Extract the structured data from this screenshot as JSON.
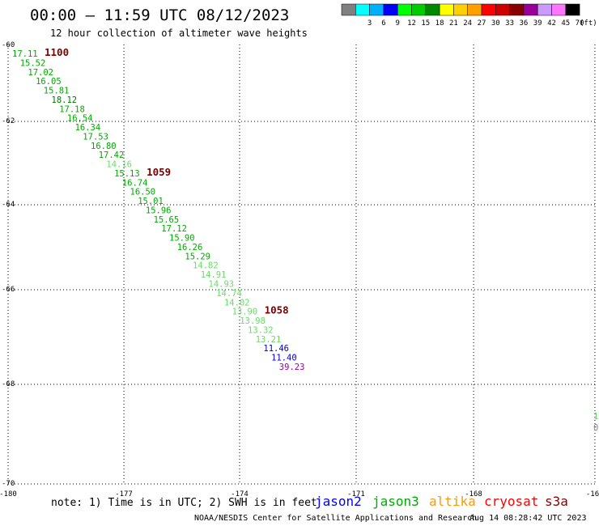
{
  "header": {
    "title": "00:00 – 11:59 UTC 08/12/2023",
    "subtitle": "12 hour collection of altimeter wave heights"
  },
  "legend": {
    "unit": "(ft)",
    "bins": [
      {
        "label": "",
        "color": "#808080"
      },
      {
        "label": "3",
        "color": "#00ffff"
      },
      {
        "label": "6",
        "color": "#00b0ff"
      },
      {
        "label": "9",
        "color": "#0000ff"
      },
      {
        "label": "12",
        "color": "#00ff00"
      },
      {
        "label": "15",
        "color": "#00cc00"
      },
      {
        "label": "18",
        "color": "#008800"
      },
      {
        "label": "21",
        "color": "#ffff00"
      },
      {
        "label": "24",
        "color": "#ffd000"
      },
      {
        "label": "27",
        "color": "#ffa000"
      },
      {
        "label": "30",
        "color": "#ff0000"
      },
      {
        "label": "33",
        "color": "#cc0000"
      },
      {
        "label": "36",
        "color": "#880000"
      },
      {
        "label": "39",
        "color": "#990099"
      },
      {
        "label": "42",
        "color": "#cc99ff"
      },
      {
        "label": "45",
        "color": "#ff77ff"
      },
      {
        "label": "70",
        "color": "#000000"
      }
    ]
  },
  "axes": {
    "lat_labels": [
      "-60",
      "-62",
      "-64",
      "-66",
      "-68",
      "-70"
    ],
    "lon_labels": [
      "-180",
      "-177",
      "-174",
      "-171",
      "-168",
      "-16"
    ]
  },
  "track": {
    "observations": [
      {
        "v": "17.11",
        "c": "#00aa00"
      },
      {
        "v": "15.52",
        "c": "#00aa00"
      },
      {
        "v": "17.02",
        "c": "#00aa00"
      },
      {
        "v": "16.05",
        "c": "#00aa00"
      },
      {
        "v": "15.81",
        "c": "#00aa00"
      },
      {
        "v": "18.12",
        "c": "#007700"
      },
      {
        "v": "17.18",
        "c": "#00aa00"
      },
      {
        "v": "16.54",
        "c": "#00aa00"
      },
      {
        "v": "16.34",
        "c": "#00aa00"
      },
      {
        "v": "17.53",
        "c": "#00aa00"
      },
      {
        "v": "16.80",
        "c": "#00aa00"
      },
      {
        "v": "17.42",
        "c": "#00aa00"
      },
      {
        "v": "14.16",
        "c": "#66dd66"
      },
      {
        "v": "15.13",
        "c": "#00aa00"
      },
      {
        "v": "16.74",
        "c": "#00aa00"
      },
      {
        "v": "16.50",
        "c": "#00aa00"
      },
      {
        "v": "15.01",
        "c": "#00aa00"
      },
      {
        "v": "15.96",
        "c": "#00aa00"
      },
      {
        "v": "15.65",
        "c": "#00aa00"
      },
      {
        "v": "17.12",
        "c": "#00aa00"
      },
      {
        "v": "15.90",
        "c": "#00aa00"
      },
      {
        "v": "16.26",
        "c": "#00aa00"
      },
      {
        "v": "15.29",
        "c": "#00aa00"
      },
      {
        "v": "14.82",
        "c": "#66dd66"
      },
      {
        "v": "14.91",
        "c": "#66dd66"
      },
      {
        "v": "14.93",
        "c": "#66dd66"
      },
      {
        "v": "14.74",
        "c": "#66dd66"
      },
      {
        "v": "14.02",
        "c": "#66dd66"
      },
      {
        "v": "13.90",
        "c": "#66dd66"
      },
      {
        "v": "13.98",
        "c": "#66dd66"
      },
      {
        "v": "13.32",
        "c": "#66dd66"
      },
      {
        "v": "13.21",
        "c": "#66dd66"
      },
      {
        "v": "11.46",
        "c": "#0000cc"
      },
      {
        "v": "11.40",
        "c": "#0000cc"
      },
      {
        "v": "39.23",
        "c": "#990099"
      }
    ],
    "time_labels": [
      {
        "text": "1100",
        "after_index": 0
      },
      {
        "text": "1059",
        "after_index": 13
      },
      {
        "text": "1058",
        "after_index": 28
      }
    ],
    "edge_marks": [
      {
        "v": "1",
        "c": "#66dd66"
      },
      {
        "v": "0",
        "c": "#888888"
      }
    ]
  },
  "footer": {
    "note": "note: 1) Time is in UTC; 2) SWH is in feet",
    "satellites": [
      {
        "name": "jason2",
        "color": "#0000ff"
      },
      {
        "name": "jason3",
        "color": "#00aa00"
      },
      {
        "name": "altika",
        "color": "#ff9900"
      },
      {
        "name": "cryosat",
        "color": "#ff0000"
      },
      {
        "name": "s3a",
        "color": "#880000"
      }
    ],
    "credit": "NOAA/NESDIS Center for Satellite Applications and Research",
    "timestamp": "Aug 14 08:28:42 UTC 2023"
  }
}
